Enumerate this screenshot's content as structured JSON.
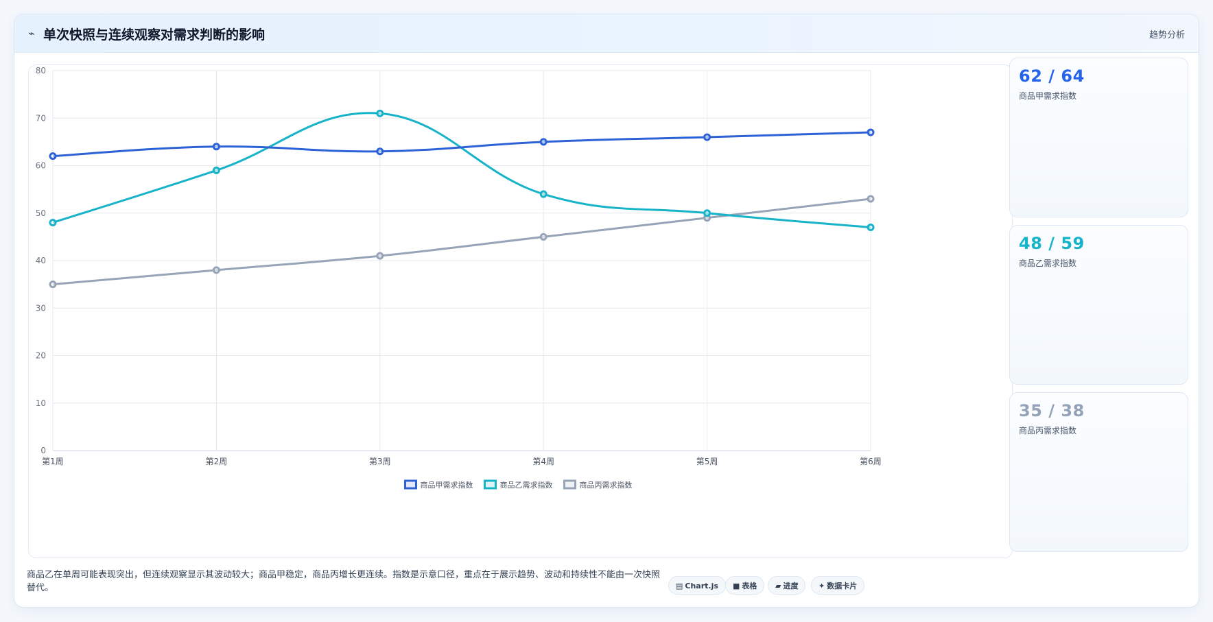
{
  "header": {
    "icon": "chart-spark-icon",
    "icon_glyph": "⌁",
    "title": "单次快照与连续观察对需求判断的影响",
    "tag": "趋势分析"
  },
  "stats": [
    {
      "value": "62 / 64",
      "label": "商品甲需求指数",
      "color": "#2563eb"
    },
    {
      "value": "48 / 59",
      "label": "商品乙需求指数",
      "color": "#17b3c9"
    },
    {
      "value": "35 / 38",
      "label": "商品丙需求指数",
      "color": "#94a3b8"
    }
  ],
  "footer": {
    "note": "商品乙在单周可能表现突出，但连续观察显示其波动较大；商品甲稳定，商品丙增长更连续。指数是示意口径，重点在于展示趋势、波动和持续性不能由一次快照替代。"
  },
  "chips": [
    {
      "icon": "chart-icon",
      "glyph": "▤",
      "label": "Chart.js"
    },
    {
      "icon": "table-icon",
      "glyph": "■",
      "label": "表格"
    },
    {
      "icon": "progress-icon",
      "glyph": "▰",
      "label": "进度"
    },
    {
      "icon": "card-icon",
      "glyph": "✦",
      "label": "数据卡片"
    }
  ],
  "chart_data": {
    "type": "line",
    "categories": [
      "第1周",
      "第2周",
      "第3周",
      "第4周",
      "第5周",
      "第6周"
    ],
    "ylim": [
      0,
      80
    ],
    "yticks": [
      0,
      10,
      20,
      30,
      40,
      50,
      60,
      70,
      80
    ],
    "grid": true,
    "legend_position": "bottom",
    "series": [
      {
        "name": "商品甲需求指数",
        "color": "#2d62d6",
        "values": [
          62,
          64,
          63,
          65,
          66,
          67
        ]
      },
      {
        "name": "商品乙需求指数",
        "color": "#17b3c9",
        "values": [
          48,
          59,
          71,
          54,
          50,
          47
        ]
      },
      {
        "name": "商品丙需求指数",
        "color": "#97a3b6",
        "values": [
          35,
          38,
          41,
          45,
          49,
          53
        ]
      }
    ]
  }
}
